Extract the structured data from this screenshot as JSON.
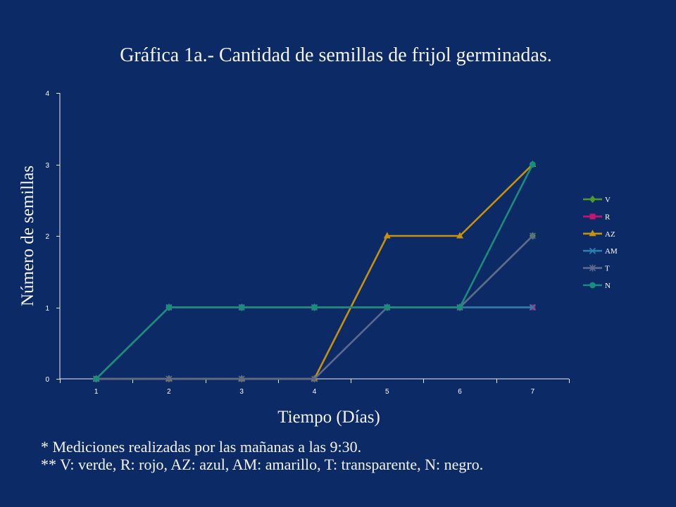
{
  "chart_data": {
    "type": "line",
    "title": "Gráfica 1a.- Cantidad de semillas de frijol germinadas.",
    "xlabel": "Tiempo (Días)",
    "ylabel": "Número de semillas",
    "categories": [
      "1",
      "2",
      "3",
      "4",
      "5",
      "6",
      "7"
    ],
    "ylim": [
      0,
      4
    ],
    "yticks": [
      0,
      1,
      2,
      3,
      4
    ],
    "grid": false,
    "legend": "right",
    "series": [
      {
        "name": "V",
        "color": "#4f9a2e",
        "marker": "diamond",
        "values": [
          0,
          1,
          1,
          1,
          1,
          1,
          2
        ]
      },
      {
        "name": "R",
        "color": "#c4166f",
        "marker": "square",
        "values": [
          0,
          1,
          1,
          1,
          1,
          1,
          1
        ]
      },
      {
        "name": "AZ",
        "color": "#c8910c",
        "marker": "triangle",
        "values": [
          0,
          0,
          0,
          0,
          2,
          2,
          3
        ]
      },
      {
        "name": "AM",
        "color": "#2a7fb0",
        "marker": "x",
        "values": [
          0,
          1,
          1,
          1,
          1,
          1,
          1
        ]
      },
      {
        "name": "T",
        "color": "#5c6a8c",
        "marker": "star",
        "values": [
          0,
          0,
          0,
          0,
          1,
          1,
          2
        ]
      },
      {
        "name": "N",
        "color": "#1a8c7c",
        "marker": "circle",
        "values": [
          0,
          1,
          1,
          1,
          1,
          1,
          3
        ]
      }
    ]
  },
  "notes": [
    "* Mediciones realizadas por las mañanas a las 9:30.",
    "** V: verde, R: rojo, AZ: azul, AM: amarillo, T: transparente, N: negro."
  ],
  "colors": {
    "background": "#0c2a66",
    "text": "#ffffff",
    "axis": "#e8ecf4"
  }
}
